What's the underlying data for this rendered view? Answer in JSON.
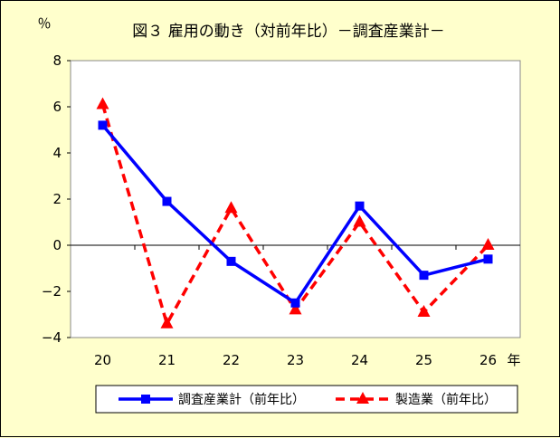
{
  "chart_data": {
    "type": "line",
    "title": "図３ 雇用の動き（対前年比）－調査産業計－",
    "ylabel": "％",
    "xlabel": "年",
    "categories": [
      "20",
      "21",
      "22",
      "23",
      "24",
      "25",
      "26"
    ],
    "ylim": [
      -4,
      8
    ],
    "yticks": [
      -4,
      -2,
      0,
      2,
      4,
      6,
      8
    ],
    "ytick_labels": [
      "−4",
      "−2",
      "0",
      "2",
      "4",
      "6",
      "8"
    ],
    "grid": false,
    "legend_placement": "bottom",
    "series": [
      {
        "name": "調査産業計（前年比）",
        "values": [
          5.2,
          1.9,
          -0.7,
          -2.5,
          1.7,
          -1.3,
          -0.6
        ],
        "color": "#0000ff",
        "line_style": "solid",
        "marker": "square"
      },
      {
        "name": "製造業（前年比）",
        "values": [
          6.1,
          -3.4,
          1.6,
          -2.8,
          1.0,
          -2.9,
          0.0
        ],
        "color": "#ff0000",
        "line_style": "dashed",
        "marker": "triangle"
      }
    ]
  }
}
